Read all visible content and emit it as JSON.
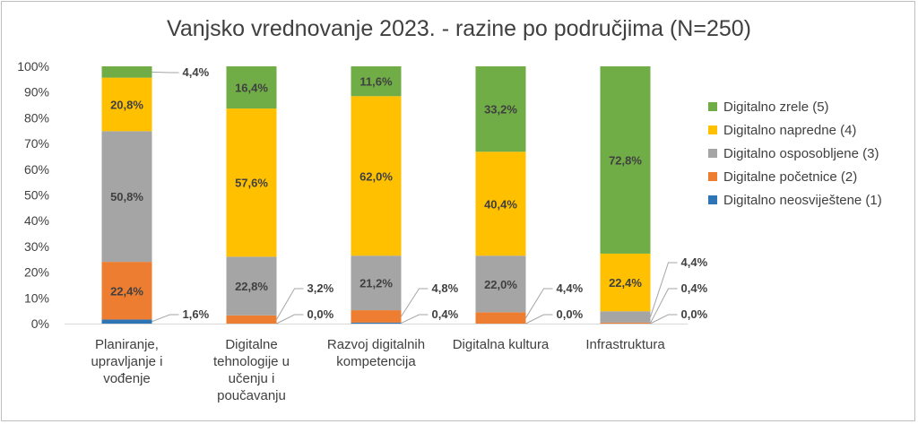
{
  "chart_data": {
    "type": "bar",
    "stacked": true,
    "title": "Vanjsko vrednovanje 2023. - razine po područjima (N=250)",
    "categories": [
      [
        "Planiranje,",
        "upravljanje i",
        "vođenje"
      ],
      [
        "Digitalne",
        "tehnologije u",
        "učenju i",
        "poučavanju"
      ],
      [
        "Razvoj digitalnih",
        "kompetencija"
      ],
      [
        "Digitalna kultura"
      ],
      [
        "Infrastruktura"
      ]
    ],
    "series": [
      {
        "name": "Digitalno neosviještene (1)",
        "color": "#2E75B6",
        "values": [
          1.6,
          0.0,
          0.4,
          0.0,
          0.0
        ],
        "labels": [
          "1,6%",
          "0,0%",
          "0,4%",
          "0,0%",
          "0,0%"
        ]
      },
      {
        "name": "Digitalne početnice (2)",
        "color": "#ED7D31",
        "values": [
          22.4,
          3.2,
          4.8,
          4.4,
          0.4
        ],
        "labels": [
          "22,4%",
          "3,2%",
          "4,8%",
          "4,4%",
          "0,4%"
        ]
      },
      {
        "name": "Digitalno osposobljene (3)",
        "color": "#A5A5A5",
        "values": [
          50.8,
          22.8,
          21.2,
          22.0,
          4.4
        ],
        "labels": [
          "50,8%",
          "22,8%",
          "21,2%",
          "22,0%",
          "4,4%"
        ]
      },
      {
        "name": "Digitalno napredne (4)",
        "color": "#FFC000",
        "values": [
          20.8,
          57.6,
          62.0,
          40.4,
          22.4
        ],
        "labels": [
          "20,8%",
          "57,6%",
          "62,0%",
          "40,4%",
          "22,4%"
        ]
      },
      {
        "name": "Digitalno zrele (5)",
        "color": "#70AD47",
        "values": [
          4.4,
          16.4,
          11.6,
          33.2,
          72.8
        ],
        "labels": [
          "4,4%",
          "16,4%",
          "11,6%",
          "33,2%",
          "72,8%"
        ]
      }
    ],
    "ylim": [
      0,
      100
    ],
    "yticks": [
      "0%",
      "10%",
      "20%",
      "30%",
      "40%",
      "50%",
      "60%",
      "70%",
      "80%",
      "90%",
      "100%"
    ],
    "grid": false,
    "legend_position": "right",
    "legend_order": [
      4,
      3,
      2,
      1,
      0
    ],
    "callout_leaders": true
  }
}
